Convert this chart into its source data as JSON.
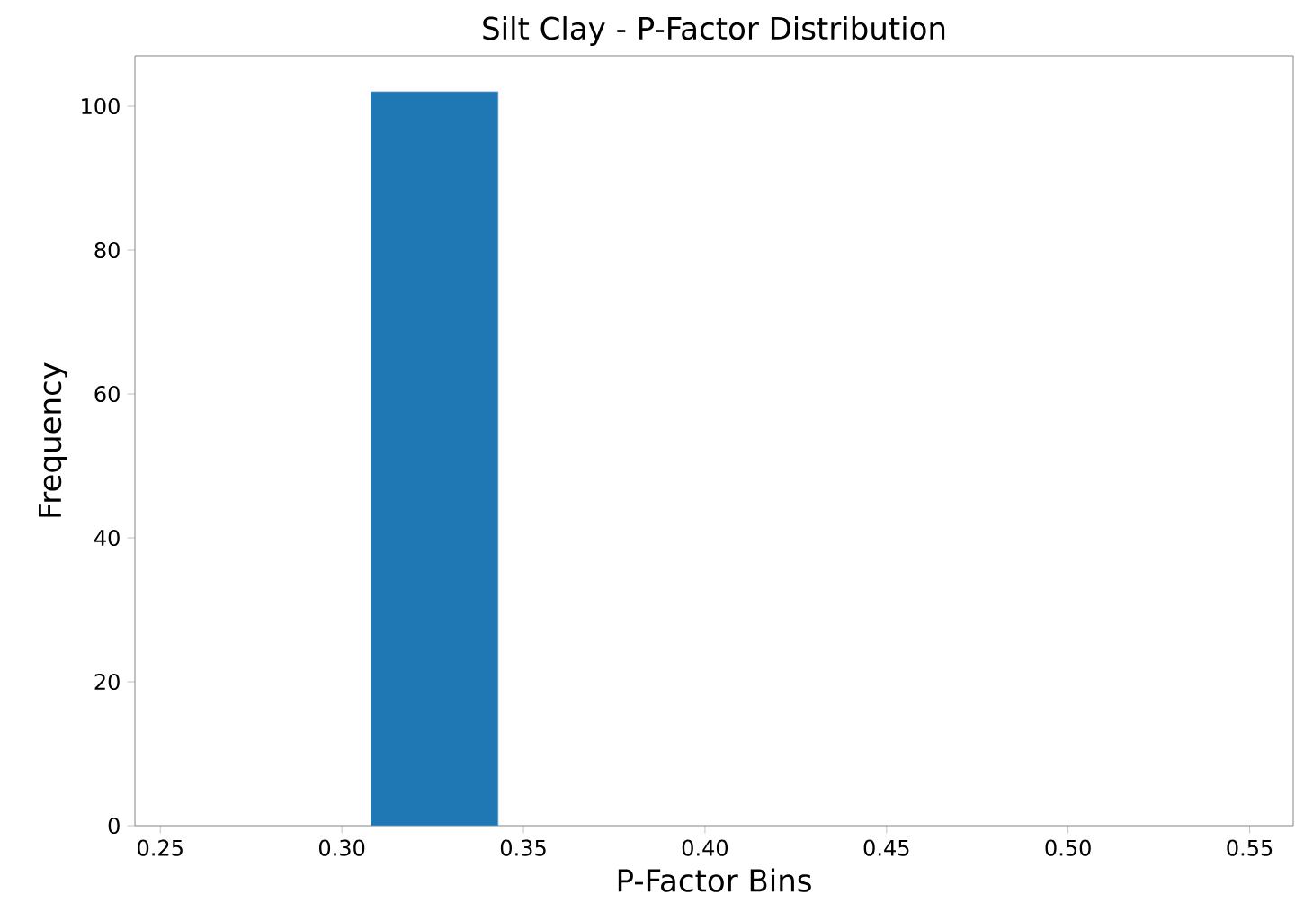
{
  "chart_data": {
    "type": "histogram",
    "title": "Silt Clay - P-Factor Distribution",
    "xlabel": "P-Factor Bins",
    "ylabel": "Frequency",
    "bins": [
      0.308,
      0.343
    ],
    "values": [
      102
    ],
    "color": "#1f77b4",
    "xlim": [
      0.243,
      0.562
    ],
    "xticks": [
      {
        "value": 0.25,
        "label": "0.25"
      },
      {
        "value": 0.3,
        "label": "0.30"
      },
      {
        "value": 0.35,
        "label": "0.35"
      },
      {
        "value": 0.4,
        "label": "0.40"
      },
      {
        "value": 0.45,
        "label": "0.45"
      },
      {
        "value": 0.5,
        "label": "0.50"
      },
      {
        "value": 0.55,
        "label": "0.55"
      }
    ],
    "ylim": [
      0,
      107
    ],
    "yticks": [
      0,
      20,
      40,
      60,
      80,
      100
    ]
  }
}
